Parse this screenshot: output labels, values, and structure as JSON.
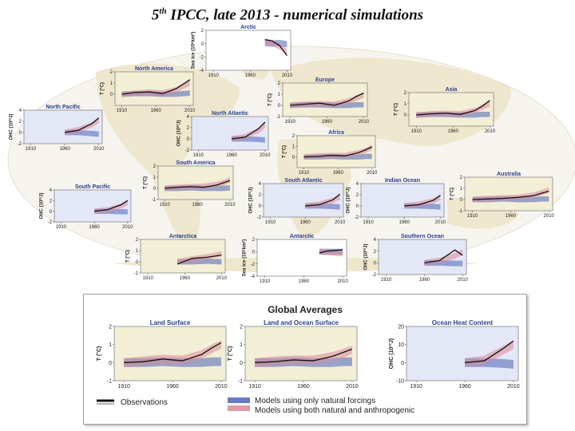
{
  "slide": {
    "title_main": "5",
    "title_sup": "th",
    "title_rest": " IPCC, late 2013 - numerical simulations"
  },
  "colors": {
    "observations": "#111111",
    "natural": "#4a64b8",
    "anthropogenic": "#d98a9a",
    "land_panel": "#f3eed6",
    "ocean_panel": "#e4e7f6",
    "seaice_panel": "#ffffff",
    "map_land": "#efe7cd",
    "map_ocean": "#ffffff"
  },
  "global_averages": {
    "heading": "Global Averages",
    "legend": {
      "observations": "Observations",
      "natural": "Models using only natural forcings",
      "anthropogenic": "Models using both natural and anthropogenic"
    }
  },
  "chart_data": [
    {
      "id": "arctic",
      "type": "line",
      "title": "Arctic",
      "kind": "seaice",
      "ylabel": "Sea ice (10⁶km²)",
      "ylim": [
        -4,
        2
      ],
      "yticks": [
        2,
        0,
        -2,
        -4
      ],
      "xticks": [
        1910,
        1960,
        2010
      ],
      "x": [
        1980,
        1990,
        2000,
        2010
      ],
      "obs": [
        0.6,
        0.4,
        -0.3,
        -1.8
      ],
      "nat": [
        0.1,
        0,
        0.1,
        -0.1
      ],
      "ant": [
        0.3,
        0.1,
        -0.4,
        -1.3
      ]
    },
    {
      "id": "north-america",
      "type": "line",
      "title": "North America",
      "kind": "land",
      "ylabel": "T (°C)",
      "ylim": [
        -1,
        2
      ],
      "yticks": [
        2,
        1,
        0
      ],
      "xticks": [
        1910,
        1960,
        2010
      ],
      "x": [
        1910,
        1930,
        1950,
        1970,
        1990,
        2000,
        2010
      ],
      "obs": [
        0,
        0.15,
        0.2,
        0.05,
        0.5,
        0.9,
        1.3
      ],
      "nat": [
        0,
        0.05,
        0.05,
        0,
        0,
        0.05,
        0.1
      ],
      "ant": [
        0,
        0.1,
        0.2,
        0.1,
        0.4,
        0.7,
        1.0
      ]
    },
    {
      "id": "europe",
      "type": "line",
      "title": "Europe",
      "kind": "land",
      "ylabel": "T (°C)",
      "ylim": [
        -1,
        2
      ],
      "yticks": [
        2,
        1,
        0,
        -1
      ],
      "xticks": [
        1910,
        1960,
        2010
      ],
      "x": [
        1910,
        1930,
        1950,
        1970,
        1990,
        2000,
        2010
      ],
      "obs": [
        0,
        0.1,
        0.2,
        0,
        0.4,
        0.8,
        1.1
      ],
      "nat": [
        0,
        0.05,
        0.05,
        0,
        0,
        0.05,
        0.05
      ],
      "ant": [
        0,
        0.1,
        0.15,
        0.1,
        0.4,
        0.65,
        0.9
      ]
    },
    {
      "id": "asia",
      "type": "line",
      "title": "Asia",
      "kind": "land",
      "ylabel": "T (°C)",
      "ylim": [
        -1,
        2
      ],
      "yticks": [
        2,
        1,
        0
      ],
      "xticks": [
        1910,
        1960,
        2010
      ],
      "x": [
        1910,
        1930,
        1950,
        1970,
        1990,
        2000,
        2010
      ],
      "obs": [
        0,
        0.1,
        0.15,
        0.05,
        0.4,
        0.8,
        1.3
      ],
      "nat": [
        0,
        0.05,
        0.05,
        0,
        0,
        0.05,
        0.05
      ],
      "ant": [
        0,
        0.1,
        0.15,
        0.1,
        0.4,
        0.7,
        1.0
      ]
    },
    {
      "id": "north-pacific",
      "type": "line",
      "title": "North Pacific",
      "kind": "ohc",
      "ylabel": "OHC (10²²J)",
      "ylim": [
        -2,
        4
      ],
      "yticks": [
        4,
        2,
        0,
        -2
      ],
      "xticks": [
        1910,
        1960,
        2010
      ],
      "x": [
        1960,
        1980,
        2000,
        2010
      ],
      "obs": [
        0,
        0.4,
        1.6,
        2.6
      ],
      "nat": [
        0,
        0,
        -0.2,
        -0.3
      ],
      "ant": [
        0,
        0.5,
        1.4,
        2.2
      ]
    },
    {
      "id": "north-atlantic",
      "type": "line",
      "title": "North Atlantic",
      "kind": "ohc",
      "ylabel": "OHC (10²²J)",
      "ylim": [
        -2,
        4
      ],
      "yticks": [
        4,
        2,
        0,
        -2
      ],
      "xticks": [
        1910,
        1960,
        2010
      ],
      "x": [
        1960,
        1980,
        2000,
        2010
      ],
      "obs": [
        0,
        0.3,
        1.8,
        3.0
      ],
      "nat": [
        0,
        0,
        -0.1,
        -0.2
      ],
      "ant": [
        0,
        0.4,
        1.5,
        2.4
      ]
    },
    {
      "id": "africa",
      "type": "line",
      "title": "Africa",
      "kind": "land",
      "ylabel": "T (°C)",
      "ylim": [
        -1,
        2
      ],
      "yticks": [
        2,
        1,
        0
      ],
      "xticks": [
        1910,
        1960,
        2010
      ],
      "x": [
        1910,
        1930,
        1950,
        1970,
        1990,
        2000,
        2010
      ],
      "obs": [
        0,
        0.05,
        0.15,
        0.1,
        0.4,
        0.65,
        0.95
      ],
      "nat": [
        0,
        0,
        0.05,
        0,
        0,
        0.05,
        0.05
      ],
      "ant": [
        0,
        0.1,
        0.15,
        0.15,
        0.4,
        0.6,
        0.9
      ]
    },
    {
      "id": "south-america",
      "type": "line",
      "title": "South America",
      "kind": "land",
      "ylabel": "T (°C)",
      "ylim": [
        -1,
        2
      ],
      "yticks": [
        2,
        1,
        0,
        -1
      ],
      "xticks": [
        1910,
        1960,
        2010
      ],
      "x": [
        1910,
        1930,
        1950,
        1970,
        1990,
        2000,
        2010
      ],
      "obs": [
        0,
        0.1,
        0.15,
        0.1,
        0.3,
        0.5,
        0.7
      ],
      "nat": [
        0,
        0,
        0.05,
        0,
        0,
        0,
        0.05
      ],
      "ant": [
        0,
        0.1,
        0.15,
        0.2,
        0.35,
        0.5,
        0.75
      ]
    },
    {
      "id": "south-pacific",
      "type": "line",
      "title": "South Pacific",
      "kind": "ohc",
      "ylabel": "OHC (10²²J)",
      "ylim": [
        -2,
        4
      ],
      "yticks": [
        4,
        2,
        0,
        -2
      ],
      "xticks": [
        1910,
        1960,
        2010
      ],
      "x": [
        1960,
        1980,
        2000,
        2010
      ],
      "obs": [
        0,
        0.3,
        1.2,
        2.0
      ],
      "nat": [
        0,
        0,
        -0.1,
        -0.1
      ],
      "ant": [
        0,
        0.3,
        1.0,
        1.6
      ]
    },
    {
      "id": "south-atlantic",
      "type": "line",
      "title": "South Atlantic",
      "kind": "ohc",
      "ylabel": "OHC (10²²J)",
      "ylim": [
        -2,
        4
      ],
      "yticks": [
        4,
        2,
        0,
        -2
      ],
      "xticks": [
        1910,
        1960,
        2010
      ],
      "x": [
        1960,
        1980,
        2000,
        2010
      ],
      "obs": [
        0,
        0.2,
        1.1,
        2.1
      ],
      "nat": [
        0,
        0,
        -0.1,
        -0.2
      ],
      "ant": [
        0,
        0.3,
        1.0,
        1.6
      ]
    },
    {
      "id": "indian-ocean",
      "type": "line",
      "title": "Indian Ocean",
      "kind": "ohc",
      "ylabel": "OHC (10²²J)",
      "ylim": [
        -2,
        4
      ],
      "yticks": [
        4,
        2,
        0,
        -2
      ],
      "xticks": [
        1910,
        1960,
        2010
      ],
      "x": [
        1960,
        1980,
        2000,
        2010
      ],
      "obs": [
        0,
        0.2,
        1.0,
        1.9
      ],
      "nat": [
        0,
        0,
        -0.1,
        -0.2
      ],
      "ant": [
        0,
        0.3,
        0.9,
        1.5
      ]
    },
    {
      "id": "australia",
      "type": "line",
      "title": "Australia",
      "kind": "land",
      "ylabel": "T (°C)",
      "ylim": [
        -1,
        2
      ],
      "yticks": [
        2,
        1,
        0,
        -1
      ],
      "xticks": [
        1910,
        1960,
        2010
      ],
      "x": [
        1910,
        1930,
        1950,
        1970,
        1990,
        2000,
        2010
      ],
      "obs": [
        0,
        0.05,
        0.1,
        0.2,
        0.35,
        0.55,
        0.75
      ],
      "nat": [
        0,
        0,
        0.05,
        0,
        0,
        0.05,
        0.05
      ],
      "ant": [
        0,
        0.1,
        0.15,
        0.2,
        0.4,
        0.6,
        0.85
      ]
    },
    {
      "id": "antarctica",
      "type": "line",
      "title": "Antarctica",
      "kind": "land",
      "ylabel": "T (°C)",
      "ylim": [
        -1,
        2
      ],
      "yticks": [
        2,
        1,
        0,
        -1
      ],
      "xticks": [
        1910,
        1960,
        2010
      ],
      "x": [
        1950,
        1970,
        1990,
        2010
      ],
      "obs": [
        -0.2,
        0.3,
        0.4,
        0.6
      ],
      "nat": [
        0,
        0,
        0.05,
        0
      ],
      "ant": [
        0,
        0.25,
        0.45,
        0.7
      ]
    },
    {
      "id": "antarctic",
      "type": "line",
      "title": "Antarctic",
      "kind": "seaice",
      "ylabel": "Sea ice (10⁶km²)",
      "ylim": [
        -4,
        2
      ],
      "yticks": [
        2,
        0,
        -2,
        -4
      ],
      "xticks": [
        1910,
        1960,
        2010
      ],
      "x": [
        1980,
        1990,
        2000,
        2010
      ],
      "obs": [
        -0.2,
        0.1,
        0.2,
        0.3
      ],
      "nat": [
        0,
        0,
        0,
        0
      ],
      "ant": [
        0,
        -0.1,
        -0.2,
        -0.3
      ]
    },
    {
      "id": "southern-ocean",
      "type": "line",
      "title": "Southern Ocean",
      "kind": "ohc",
      "ylabel": "OHC (10²²J)",
      "ylim": [
        -2,
        4
      ],
      "yticks": [
        4,
        2,
        0,
        -2
      ],
      "xticks": [
        1910,
        1960,
        2010
      ],
      "x": [
        1960,
        1980,
        2000,
        2010
      ],
      "obs": [
        0,
        0.4,
        2.2,
        1.3
      ],
      "nat": [
        0,
        0,
        -0.1,
        -0.1
      ],
      "ant": [
        0,
        0.4,
        1.2,
        1.8
      ]
    },
    {
      "id": "land-surface",
      "type": "line",
      "title": "Land Surface",
      "kind": "land",
      "ylabel": "T (°C)",
      "ylim": [
        -1,
        2
      ],
      "yticks": [
        2,
        1,
        0,
        -1
      ],
      "xticks": [
        1910,
        1960,
        2010
      ],
      "x": [
        1910,
        1930,
        1950,
        1970,
        1990,
        2000,
        2010
      ],
      "obs": [
        0,
        0.05,
        0.2,
        0.1,
        0.45,
        0.8,
        1.1
      ],
      "nat": [
        0,
        0,
        0.05,
        0,
        0,
        0.05,
        0.05
      ],
      "ant": [
        0,
        0.1,
        0.2,
        0.15,
        0.45,
        0.75,
        1.0
      ]
    },
    {
      "id": "land-and-ocean-surface",
      "type": "line",
      "title": "Land and Ocean Surface",
      "kind": "land",
      "ylabel": "T (°C)",
      "ylim": [
        -1,
        2
      ],
      "yticks": [
        2,
        1,
        0,
        -1
      ],
      "xticks": [
        1910,
        1960,
        2010
      ],
      "x": [
        1910,
        1930,
        1950,
        1970,
        1990,
        2000,
        2010
      ],
      "obs": [
        0,
        0.05,
        0.15,
        0.1,
        0.35,
        0.55,
        0.75
      ],
      "nat": [
        0,
        0,
        0.05,
        0,
        0,
        0.05,
        0.05
      ],
      "ant": [
        0,
        0.1,
        0.15,
        0.15,
        0.35,
        0.5,
        0.7
      ]
    },
    {
      "id": "ocean-heat-content",
      "type": "line",
      "title": "Ocean Heat Content",
      "kind": "ohc",
      "ylabel": "OHC (10²²J)",
      "ylim": [
        -10,
        20
      ],
      "yticks": [
        20,
        10,
        0,
        -10
      ],
      "xticks": [
        1910,
        1960,
        2010
      ],
      "x": [
        1960,
        1980,
        2000,
        2010
      ],
      "obs": [
        0,
        1,
        8,
        12
      ],
      "nat": [
        0,
        0,
        -0.5,
        -1
      ],
      "ant": [
        0,
        1.5,
        7,
        10
      ]
    }
  ]
}
